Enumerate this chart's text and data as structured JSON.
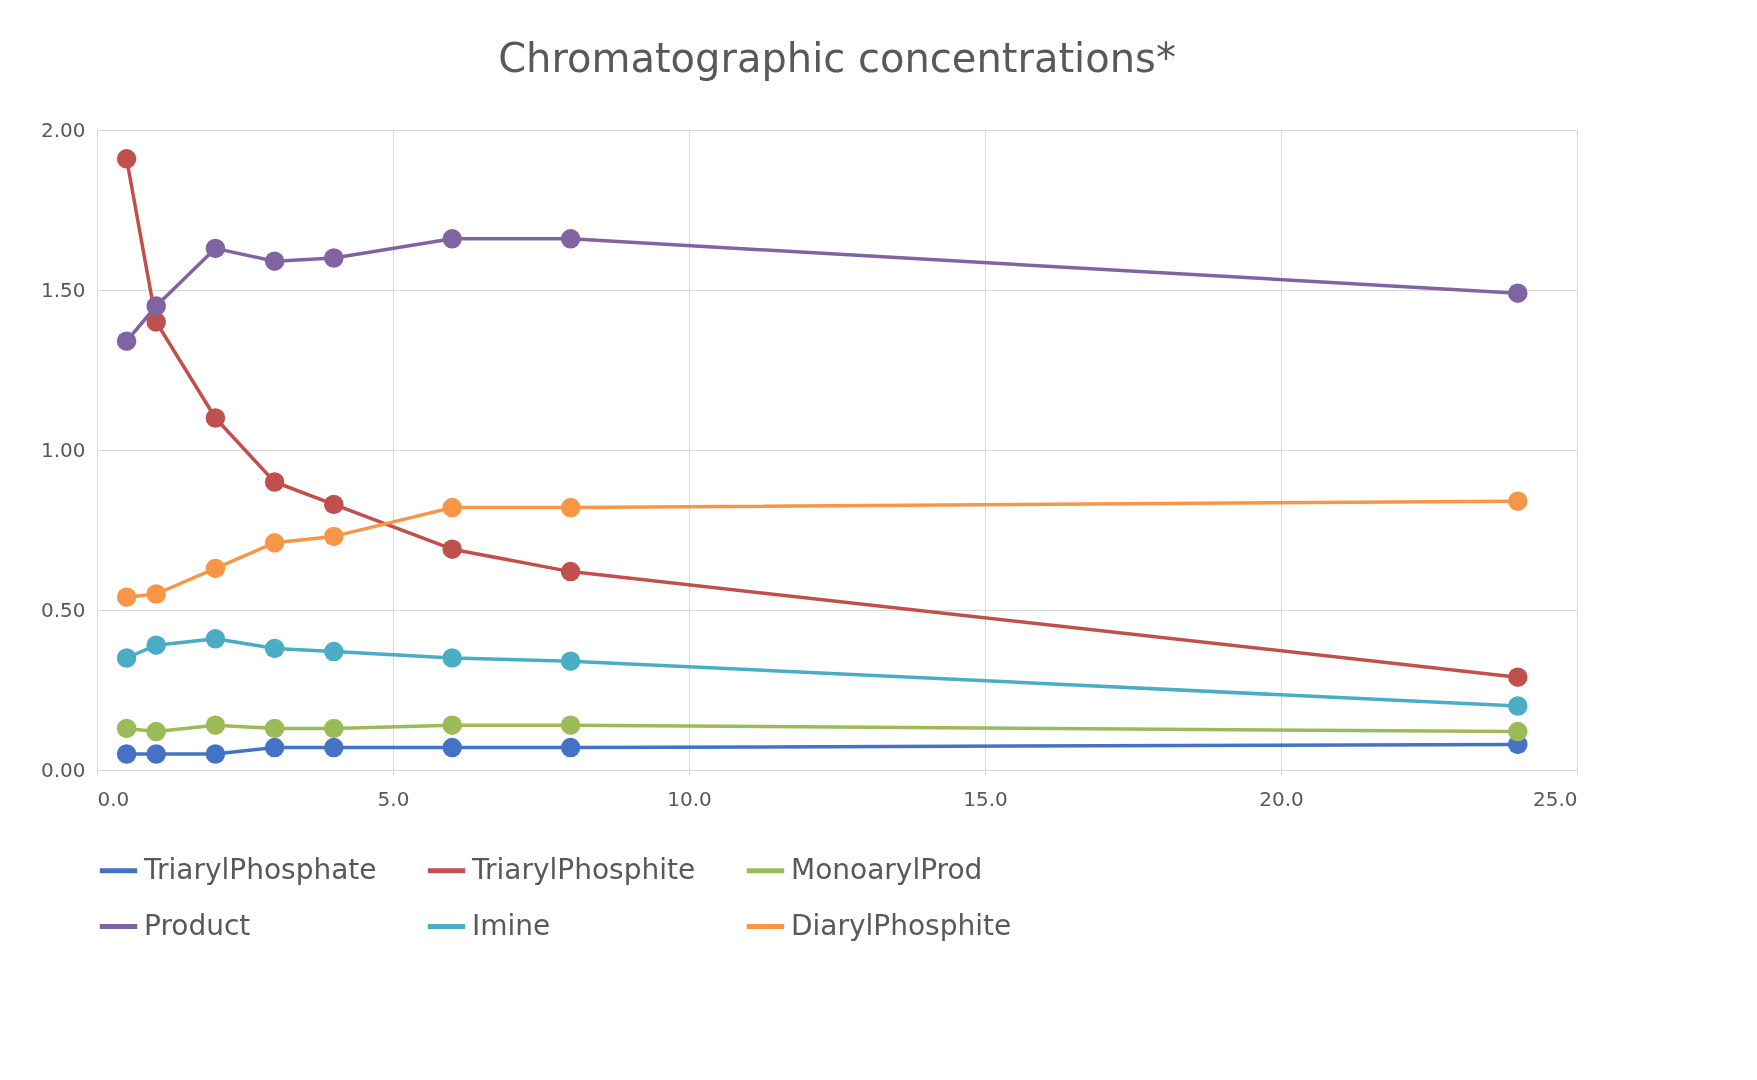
{
  "chart_data": {
    "type": "line",
    "title": "Chromatographic concentrations*",
    "x": [
      0.5,
      1,
      2,
      3,
      4,
      6,
      8,
      24
    ],
    "series": [
      {
        "name": "TriarylPhosphate",
        "color": "#4472c4",
        "values": [
          0.05,
          0.05,
          0.05,
          0.07,
          0.07,
          0.07,
          0.07,
          0.08
        ]
      },
      {
        "name": "TriarylPhosphite",
        "color": "#c0504d",
        "values": [
          1.91,
          1.4,
          1.1,
          0.9,
          0.83,
          0.69,
          0.62,
          0.29
        ]
      },
      {
        "name": "MonoarylProd",
        "color": "#9bbb59",
        "values": [
          0.13,
          0.12,
          0.14,
          0.13,
          0.13,
          0.14,
          0.14,
          0.12
        ]
      },
      {
        "name": "Product",
        "color": "#8064a2",
        "values": [
          1.34,
          1.45,
          1.63,
          1.59,
          1.6,
          1.66,
          1.66,
          1.49
        ]
      },
      {
        "name": "Imine",
        "color": "#4bacc6",
        "values": [
          0.35,
          0.39,
          0.41,
          0.38,
          0.37,
          0.35,
          0.34,
          0.2
        ]
      },
      {
        "name": "DiarylPhosphite",
        "color": "#f79646",
        "values": [
          0.54,
          0.55,
          0.63,
          0.71,
          0.73,
          0.82,
          0.82,
          0.84
        ]
      }
    ],
    "xlim": [
      0,
      25
    ],
    "ylim": [
      0,
      2
    ],
    "xticks": [
      {
        "value": 0,
        "label": "0.0"
      },
      {
        "value": 5,
        "label": "5.0"
      },
      {
        "value": 10,
        "label": "10.0"
      },
      {
        "value": 15,
        "label": "15.0"
      },
      {
        "value": 20,
        "label": "20.0"
      },
      {
        "value": 25,
        "label": "25.0"
      }
    ],
    "yticks": [
      {
        "value": 0,
        "label": "0.00"
      },
      {
        "value": 0.5,
        "label": "0.50"
      },
      {
        "value": 1,
        "label": "1.00"
      },
      {
        "value": 1.5,
        "label": "1.50"
      },
      {
        "value": 2,
        "label": "2.00"
      }
    ],
    "grid": true,
    "legend": "bottom",
    "marker": "circle",
    "line_style": "solid"
  }
}
